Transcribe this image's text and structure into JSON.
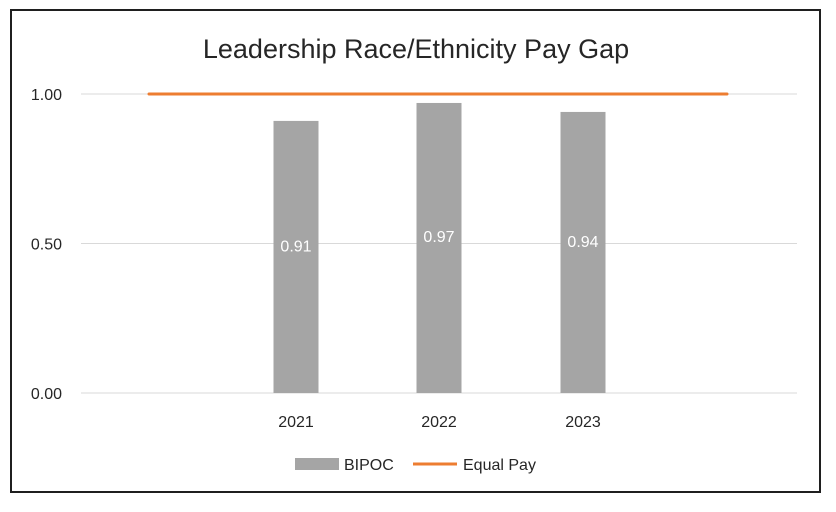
{
  "chart_data": {
    "type": "bar",
    "title": "Leadership Race/Ethnicity Pay Gap",
    "xlabel": "",
    "ylabel": "",
    "categories": [
      "2021",
      "2022",
      "2023"
    ],
    "series": [
      {
        "name": "BIPOC",
        "kind": "bar",
        "values": [
          0.91,
          0.97,
          0.94
        ],
        "data_labels": [
          "0.91",
          "0.97",
          "0.94"
        ],
        "color": "#a5a5a5"
      },
      {
        "name": "Equal Pay",
        "kind": "line",
        "values": [
          1.0,
          1.0,
          1.0
        ],
        "color": "#ed7d31"
      }
    ],
    "y_ticks": [
      "1.00",
      "0.50",
      "0.00"
    ],
    "ylim": [
      0,
      1
    ],
    "grid": true,
    "legend": "bottom"
  },
  "colors": {
    "bar": "#a5a5a5",
    "line": "#ed7d31",
    "grid": "#d9d9d9",
    "text": "#262626"
  }
}
